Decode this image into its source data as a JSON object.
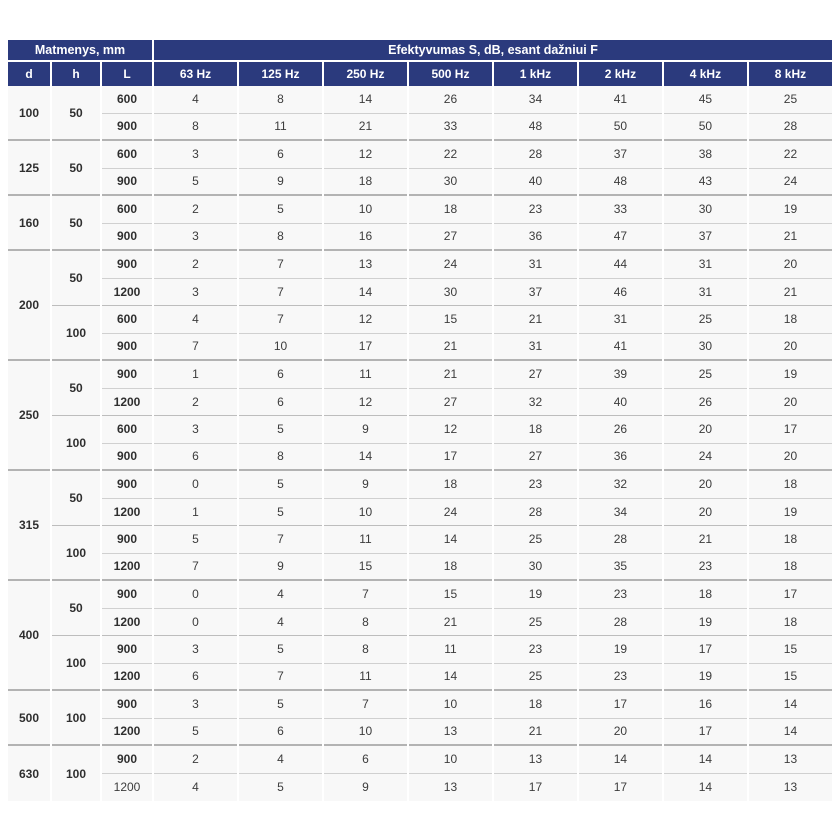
{
  "colors": {
    "header_bg": "#2b3a7d",
    "header_text": "#ffffff",
    "body_bg": "#f8f8f8",
    "body_text": "#3c3c3c",
    "row_line": "#d0d0d0",
    "group_line": "#b3b3b3"
  },
  "table": {
    "header": {
      "dims_label": "Matmenys, mm",
      "eff_label": "Efektyvumas S, dB, esant dažniui F",
      "dim_cols": [
        "d",
        "h",
        "L"
      ],
      "freq_cols": [
        "63 Hz",
        "125 Hz",
        "250 Hz",
        "500 Hz",
        "1 kHz",
        "2 kHz",
        "4 kHz",
        "8 kHz"
      ]
    },
    "groups": [
      {
        "d": "100",
        "subgroups": [
          {
            "h": "50",
            "rows": [
              {
                "L": "600",
                "values": [
                  4,
                  8,
                  14,
                  26,
                  34,
                  41,
                  45,
                  25
                ]
              },
              {
                "L": "900",
                "values": [
                  8,
                  11,
                  21,
                  33,
                  48,
                  50,
                  50,
                  28
                ]
              }
            ]
          }
        ]
      },
      {
        "d": "125",
        "subgroups": [
          {
            "h": "50",
            "rows": [
              {
                "L": "600",
                "values": [
                  3,
                  6,
                  12,
                  22,
                  28,
                  37,
                  38,
                  22
                ]
              },
              {
                "L": "900",
                "values": [
                  5,
                  9,
                  18,
                  30,
                  40,
                  48,
                  43,
                  24
                ]
              }
            ]
          }
        ]
      },
      {
        "d": "160",
        "subgroups": [
          {
            "h": "50",
            "rows": [
              {
                "L": "600",
                "values": [
                  2,
                  5,
                  10,
                  18,
                  23,
                  33,
                  30,
                  19
                ]
              },
              {
                "L": "900",
                "values": [
                  3,
                  8,
                  16,
                  27,
                  36,
                  47,
                  37,
                  21
                ]
              }
            ]
          }
        ]
      },
      {
        "d": "200",
        "subgroups": [
          {
            "h": "50",
            "rows": [
              {
                "L": "900",
                "values": [
                  2,
                  7,
                  13,
                  24,
                  31,
                  44,
                  31,
                  20
                ]
              },
              {
                "L": "1200",
                "values": [
                  3,
                  7,
                  14,
                  30,
                  37,
                  46,
                  31,
                  21
                ]
              }
            ]
          },
          {
            "h": "100",
            "rows": [
              {
                "L": "600",
                "values": [
                  4,
                  7,
                  12,
                  15,
                  21,
                  31,
                  25,
                  18
                ]
              },
              {
                "L": "900",
                "values": [
                  7,
                  10,
                  17,
                  21,
                  31,
                  41,
                  30,
                  20
                ]
              }
            ]
          }
        ]
      },
      {
        "d": "250",
        "subgroups": [
          {
            "h": "50",
            "rows": [
              {
                "L": "900",
                "values": [
                  1,
                  6,
                  11,
                  21,
                  27,
                  39,
                  25,
                  19
                ]
              },
              {
                "L": "1200",
                "values": [
                  2,
                  6,
                  12,
                  27,
                  32,
                  40,
                  26,
                  20
                ]
              }
            ]
          },
          {
            "h": "100",
            "rows": [
              {
                "L": "600",
                "values": [
                  3,
                  5,
                  9,
                  12,
                  18,
                  26,
                  20,
                  17
                ]
              },
              {
                "L": "900",
                "values": [
                  6,
                  8,
                  14,
                  17,
                  27,
                  36,
                  24,
                  20
                ]
              }
            ]
          }
        ]
      },
      {
        "d": "315",
        "subgroups": [
          {
            "h": "50",
            "rows": [
              {
                "L": "900",
                "values": [
                  0,
                  5,
                  9,
                  18,
                  23,
                  32,
                  20,
                  18
                ]
              },
              {
                "L": "1200",
                "values": [
                  1,
                  5,
                  10,
                  24,
                  28,
                  34,
                  20,
                  19
                ]
              }
            ]
          },
          {
            "h": "100",
            "rows": [
              {
                "L": "900",
                "values": [
                  5,
                  7,
                  11,
                  14,
                  25,
                  28,
                  21,
                  18
                ]
              },
              {
                "L": "1200",
                "values": [
                  7,
                  9,
                  15,
                  18,
                  30,
                  35,
                  23,
                  18
                ]
              }
            ]
          }
        ]
      },
      {
        "d": "400",
        "subgroups": [
          {
            "h": "50",
            "rows": [
              {
                "L": "900",
                "values": [
                  0,
                  4,
                  7,
                  15,
                  19,
                  23,
                  18,
                  17
                ]
              },
              {
                "L": "1200",
                "values": [
                  0,
                  4,
                  8,
                  21,
                  25,
                  28,
                  19,
                  18
                ]
              }
            ]
          },
          {
            "h": "100",
            "rows": [
              {
                "L": "900",
                "values": [
                  3,
                  5,
                  8,
                  11,
                  23,
                  19,
                  17,
                  15
                ]
              },
              {
                "L": "1200",
                "values": [
                  6,
                  7,
                  11,
                  14,
                  25,
                  23,
                  19,
                  15
                ]
              }
            ]
          }
        ]
      },
      {
        "d": "500",
        "subgroups": [
          {
            "h": "100",
            "rows": [
              {
                "L": "900",
                "values": [
                  3,
                  5,
                  7,
                  10,
                  18,
                  17,
                  16,
                  14
                ]
              },
              {
                "L": "1200",
                "values": [
                  5,
                  6,
                  10,
                  13,
                  21,
                  20,
                  17,
                  14
                ]
              }
            ]
          }
        ]
      },
      {
        "d": "630",
        "subgroups": [
          {
            "h": "100",
            "rows": [
              {
                "L": "900",
                "values": [
                  2,
                  4,
                  6,
                  10,
                  13,
                  14,
                  14,
                  13
                ]
              },
              {
                "L": "1200",
                "bold_L": false,
                "values": [
                  4,
                  5,
                  9,
                  13,
                  17,
                  17,
                  14,
                  13
                ]
              }
            ]
          }
        ]
      }
    ]
  }
}
